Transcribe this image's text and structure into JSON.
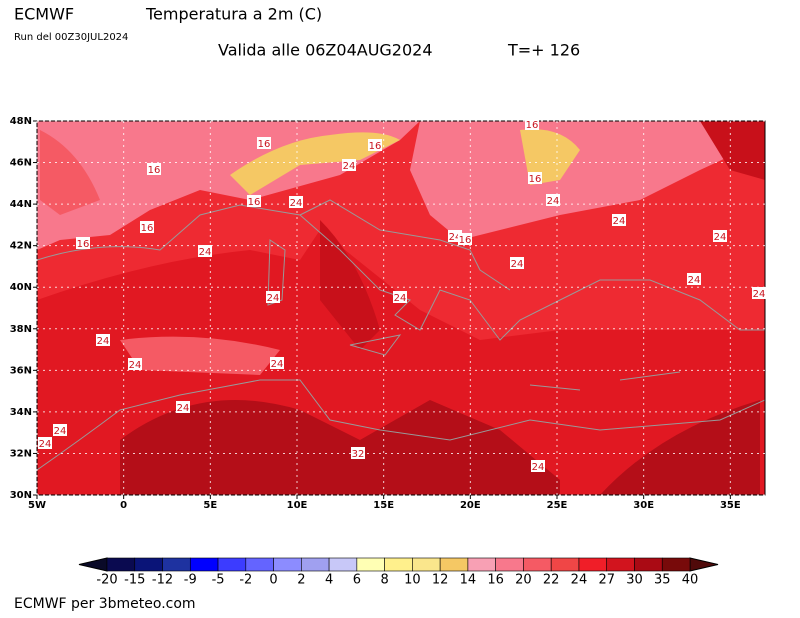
{
  "header": {
    "model": "ECMWF",
    "title": "Temperatura a 2m (C)",
    "run": "Run del 00Z30JUL2024",
    "valid": "Valida alle 06Z04AUG2024",
    "step": "T=+ 126"
  },
  "map": {
    "lat_labels": [
      "48N",
      "46N",
      "44N",
      "42N",
      "40N",
      "38N",
      "36N",
      "34N",
      "32N",
      "30N"
    ],
    "lon_labels": [
      "5W",
      "0",
      "5E",
      "10E",
      "15E",
      "20E",
      "25E",
      "30E",
      "35E"
    ],
    "contour_labels": [
      16,
      16,
      16,
      24,
      16,
      16,
      16,
      24,
      24,
      16,
      24,
      16,
      24,
      24,
      16,
      24,
      24,
      24,
      24,
      24,
      24,
      24,
      24,
      24,
      24,
      24,
      24,
      32,
      24
    ]
  },
  "colorbar": {
    "labels": [
      -20,
      -15,
      -12,
      -9,
      -5,
      -2,
      0,
      2,
      4,
      6,
      8,
      10,
      12,
      14,
      16,
      20,
      22,
      24,
      27,
      30,
      35,
      40
    ],
    "colors": [
      "#0a0a50",
      "#0a1478",
      "#1e32a0",
      "#0000ff",
      "#3c3cff",
      "#6464ff",
      "#8c8cff",
      "#a0a0f0",
      "#c8c8f8",
      "#ffffb4",
      "#fff08c",
      "#fae68c",
      "#f5c864",
      "#f8a0b4",
      "#f8788c",
      "#f55a64",
      "#f04646",
      "#f01e28",
      "#d2141e",
      "#aa0a14",
      "#780a0a"
    ]
  },
  "footer": "ECMWF per 3bmeteo.com"
}
